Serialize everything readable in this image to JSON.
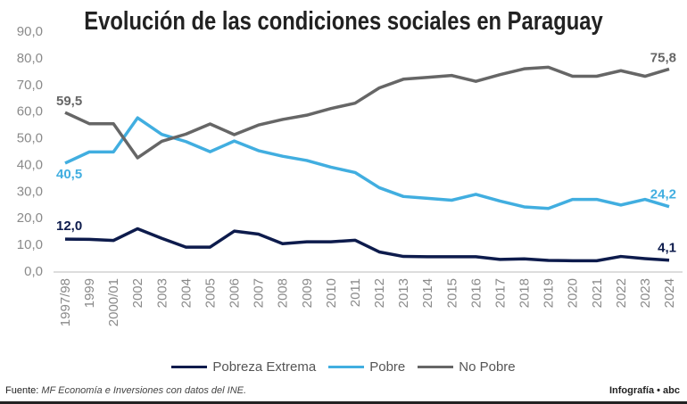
{
  "chart_data": {
    "type": "line",
    "title": "Evolución de las condiciones sociales en Paraguay",
    "categories": [
      "1997/98",
      "1999",
      "2000/01",
      "2002",
      "2003",
      "2004",
      "2005",
      "2006",
      "2007",
      "2008",
      "2009",
      "2010",
      "2011",
      "2012",
      "2013",
      "2014",
      "2015",
      "2016",
      "2017",
      "2018",
      "2019",
      "2020",
      "2021",
      "2022",
      "2023",
      "2024"
    ],
    "ylim": [
      0,
      90
    ],
    "yticks": [
      "0,0",
      "10,0",
      "20,0",
      "30,0",
      "40,0",
      "50,0",
      "60,0",
      "70,0",
      "80,0",
      "90,0"
    ],
    "grid": false,
    "legend": "bottom",
    "series": [
      {
        "name": "Pobreza Extrema",
        "color": "#0d1b4c",
        "values": [
          12.0,
          11.9,
          11.5,
          15.9,
          12.3,
          9.0,
          9.0,
          15.0,
          13.9,
          10.3,
          11.0,
          11.0,
          11.6,
          7.2,
          5.5,
          5.4,
          5.4,
          5.4,
          4.4,
          4.6,
          4.0,
          3.9,
          3.9,
          5.5,
          4.7,
          4.1
        ],
        "first_label": "12,0",
        "last_label": "4,1"
      },
      {
        "name": "Pobre",
        "color": "#41aee0",
        "values": [
          40.5,
          44.7,
          44.7,
          57.5,
          51.3,
          48.6,
          44.8,
          48.8,
          45.2,
          43.1,
          41.5,
          39.0,
          37.0,
          31.3,
          28.0,
          27.3,
          26.6,
          28.8,
          26.3,
          24.1,
          23.5,
          26.9,
          26.9,
          24.8,
          26.9,
          24.2
        ],
        "first_label": "40,5",
        "last_label": "24,2"
      },
      {
        "name": "No Pobre",
        "color": "#666666",
        "values": [
          59.5,
          55.3,
          55.3,
          42.5,
          48.7,
          51.4,
          55.2,
          51.2,
          54.8,
          56.9,
          58.5,
          61.0,
          63.0,
          68.7,
          72.0,
          72.7,
          73.4,
          71.2,
          73.7,
          75.9,
          76.5,
          73.1,
          73.1,
          75.2,
          73.1,
          75.8
        ],
        "first_label": "59,5",
        "last_label": "75,8"
      }
    ]
  },
  "footer": {
    "source_label": "Fuente:",
    "source_text": "MF Economía e Inversiones con datos del INE.",
    "credit": "Infografía • abc"
  }
}
